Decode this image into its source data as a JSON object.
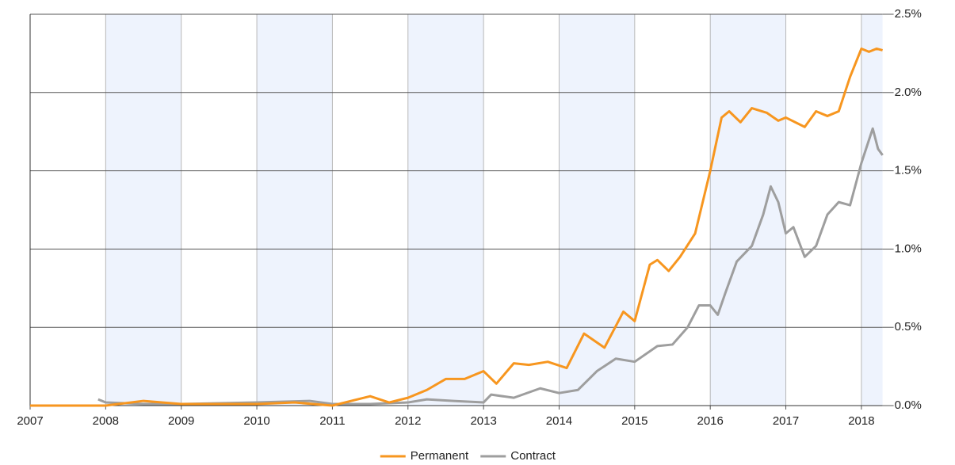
{
  "chart_data": {
    "type": "line",
    "series": [
      {
        "name": "Permanent",
        "color": "#f7961f",
        "x": [
          2007.0,
          2007.5,
          2008.0,
          2008.5,
          2009.0,
          2009.5,
          2010.0,
          2010.5,
          2011.0,
          2011.25,
          2011.5,
          2011.75,
          2012.0,
          2012.25,
          2012.5,
          2012.75,
          2013.0,
          2013.17,
          2013.4,
          2013.6,
          2013.85,
          2014.1,
          2014.33,
          2014.6,
          2014.85,
          2015.0,
          2015.2,
          2015.3,
          2015.45,
          2015.6,
          2015.8,
          2016.0,
          2016.15,
          2016.25,
          2016.4,
          2016.55,
          2016.75,
          2016.9,
          2017.0,
          2017.25,
          2017.4,
          2017.55,
          2017.7,
          2017.85,
          2018.0,
          2018.1,
          2018.2,
          2018.28
        ],
        "values": [
          0,
          0,
          0,
          0.03,
          0.01,
          0.01,
          0.01,
          0.02,
          0,
          0.03,
          0.06,
          0.02,
          0.05,
          0.1,
          0.17,
          0.17,
          0.22,
          0.14,
          0.27,
          0.26,
          0.28,
          0.24,
          0.46,
          0.37,
          0.6,
          0.54,
          0.9,
          0.93,
          0.86,
          0.95,
          1.1,
          1.5,
          1.84,
          1.88,
          1.81,
          1.9,
          1.87,
          1.82,
          1.84,
          1.78,
          1.88,
          1.85,
          1.88,
          2.1,
          2.28,
          2.26,
          2.28,
          2.27
        ]
      },
      {
        "name": "Contract",
        "color": "#9e9e9e",
        "x": [
          2007.9,
          2008.0,
          2008.5,
          2009.0,
          2010.0,
          2010.7,
          2011.0,
          2011.5,
          2012.0,
          2012.25,
          2012.6,
          2013.0,
          2013.1,
          2013.4,
          2013.75,
          2014.0,
          2014.25,
          2014.5,
          2014.75,
          2015.0,
          2015.3,
          2015.5,
          2015.7,
          2015.85,
          2016.0,
          2016.1,
          2016.2,
          2016.35,
          2016.55,
          2016.7,
          2016.8,
          2016.9,
          2017.0,
          2017.1,
          2017.25,
          2017.4,
          2017.55,
          2017.7,
          2017.85,
          2018.0,
          2018.15,
          2018.22,
          2018.28
        ],
        "values": [
          0.04,
          0.02,
          0.01,
          0.01,
          0.02,
          0.03,
          0.01,
          0.01,
          0.02,
          0.04,
          0.03,
          0.02,
          0.07,
          0.05,
          0.11,
          0.08,
          0.1,
          0.22,
          0.3,
          0.28,
          0.38,
          0.39,
          0.5,
          0.64,
          0.64,
          0.58,
          0.72,
          0.92,
          1.02,
          1.22,
          1.4,
          1.3,
          1.1,
          1.14,
          0.95,
          1.02,
          1.22,
          1.3,
          1.28,
          1.55,
          1.77,
          1.64,
          1.6
        ]
      }
    ],
    "xlim": [
      2007,
      2018.28
    ],
    "xticks": [
      2007,
      2008,
      2009,
      2010,
      2011,
      2012,
      2013,
      2014,
      2015,
      2016,
      2017,
      2018
    ],
    "ylim": [
      0,
      2.5
    ],
    "yticks": [
      {
        "value": 0,
        "label": "0.0%"
      },
      {
        "value": 0.5,
        "label": "0.5%"
      },
      {
        "value": 1.0,
        "label": "1.0%"
      },
      {
        "value": 1.5,
        "label": "1.5%"
      },
      {
        "value": 2.0,
        "label": "2.0%"
      },
      {
        "value": 2.5,
        "label": "2.5%"
      }
    ],
    "grid": true,
    "legend": "bottom"
  }
}
